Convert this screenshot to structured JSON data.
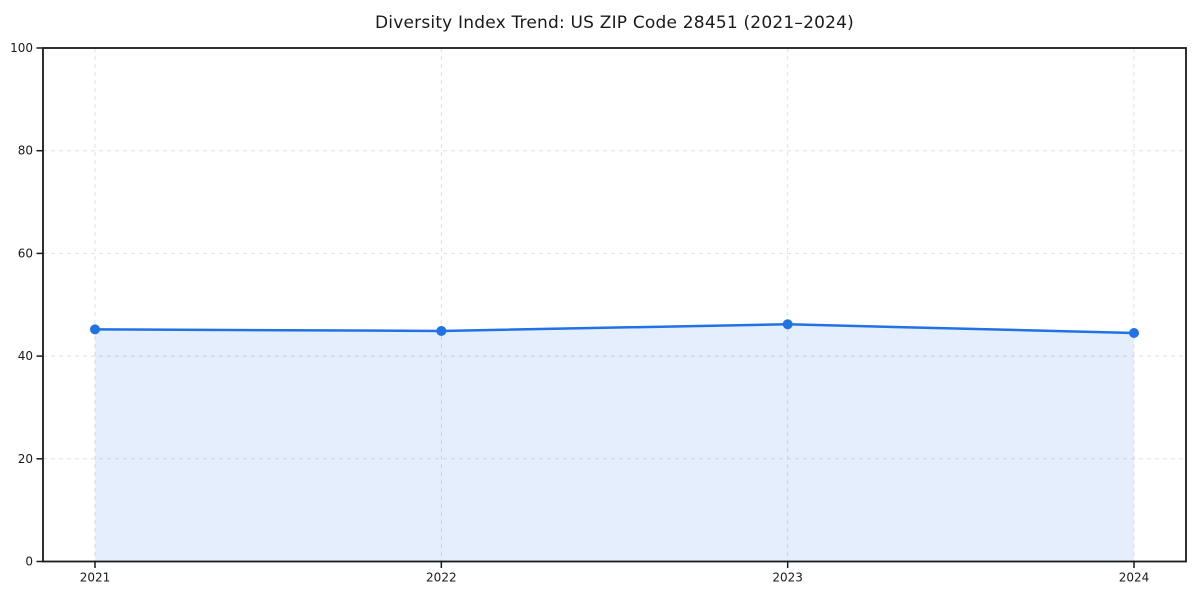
{
  "chart_data": {
    "type": "line",
    "title": "Diversity Index Trend: US ZIP Code 28451 (2021–2024)",
    "categories": [
      "2021",
      "2022",
      "2023",
      "2024"
    ],
    "series": [
      {
        "values": [
          45.2,
          44.9,
          46.2,
          44.5
        ]
      }
    ],
    "xlabel": "",
    "ylabel": "",
    "ylim": [
      0,
      100
    ],
    "yticks": [
      0,
      20,
      40,
      60,
      80,
      100
    ],
    "grid": "dashed",
    "legend": "none",
    "marker": "circle",
    "area_fill": true,
    "colors": {
      "line": "#2172e3",
      "marker": "#2172e3",
      "area_fill": "rgba(33,114,227,0.12)",
      "grid": "#e0e0e0",
      "spine": "#1a1a1a",
      "text": "#1a1a1a",
      "background": "#ffffff"
    }
  }
}
